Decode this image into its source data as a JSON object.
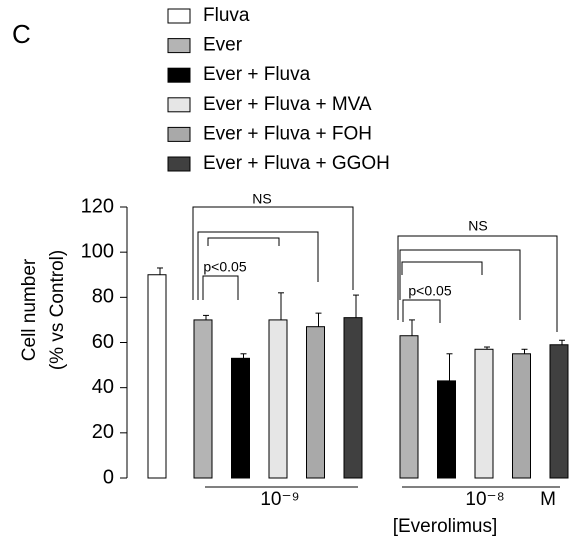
{
  "chart_data": {
    "type": "bar",
    "panel_label": "C",
    "ylabel": [
      "Cell number",
      "(% vs Control)"
    ],
    "xlabel": "[Everolimus]",
    "unit_label": "M",
    "categories": [
      null,
      "10⁻⁹",
      "10⁻⁸"
    ],
    "series": [
      {
        "name": "Fluva",
        "color": "#ffffff",
        "values": [
          90,
          null,
          null
        ],
        "errors": [
          3,
          null,
          null
        ]
      },
      {
        "name": "Ever",
        "color": "#b4b4b4",
        "values": [
          null,
          70,
          63
        ],
        "errors": [
          null,
          2,
          7
        ]
      },
      {
        "name": "Ever + Fluva",
        "color": "#000000",
        "values": [
          null,
          53,
          43
        ],
        "errors": [
          null,
          2,
          12
        ]
      },
      {
        "name": "Ever + Fluva + MVA",
        "color": "#e6e6e6",
        "values": [
          null,
          70,
          57
        ],
        "errors": [
          null,
          12,
          1
        ]
      },
      {
        "name": "Ever + Fluva + FOH",
        "color": "#a9a9a9",
        "values": [
          null,
          67,
          55
        ],
        "errors": [
          null,
          6,
          2
        ]
      },
      {
        "name": "Ever + Fluva + GGOH",
        "color": "#404040",
        "values": [
          null,
          71,
          59
        ],
        "errors": [
          null,
          10,
          2
        ]
      }
    ],
    "ylim": [
      0,
      120
    ],
    "yticks": [
      0,
      20,
      40,
      60,
      80,
      100,
      120
    ],
    "annotations": [
      "NS",
      "p<0.05",
      "NS",
      "p<0.05"
    ]
  }
}
